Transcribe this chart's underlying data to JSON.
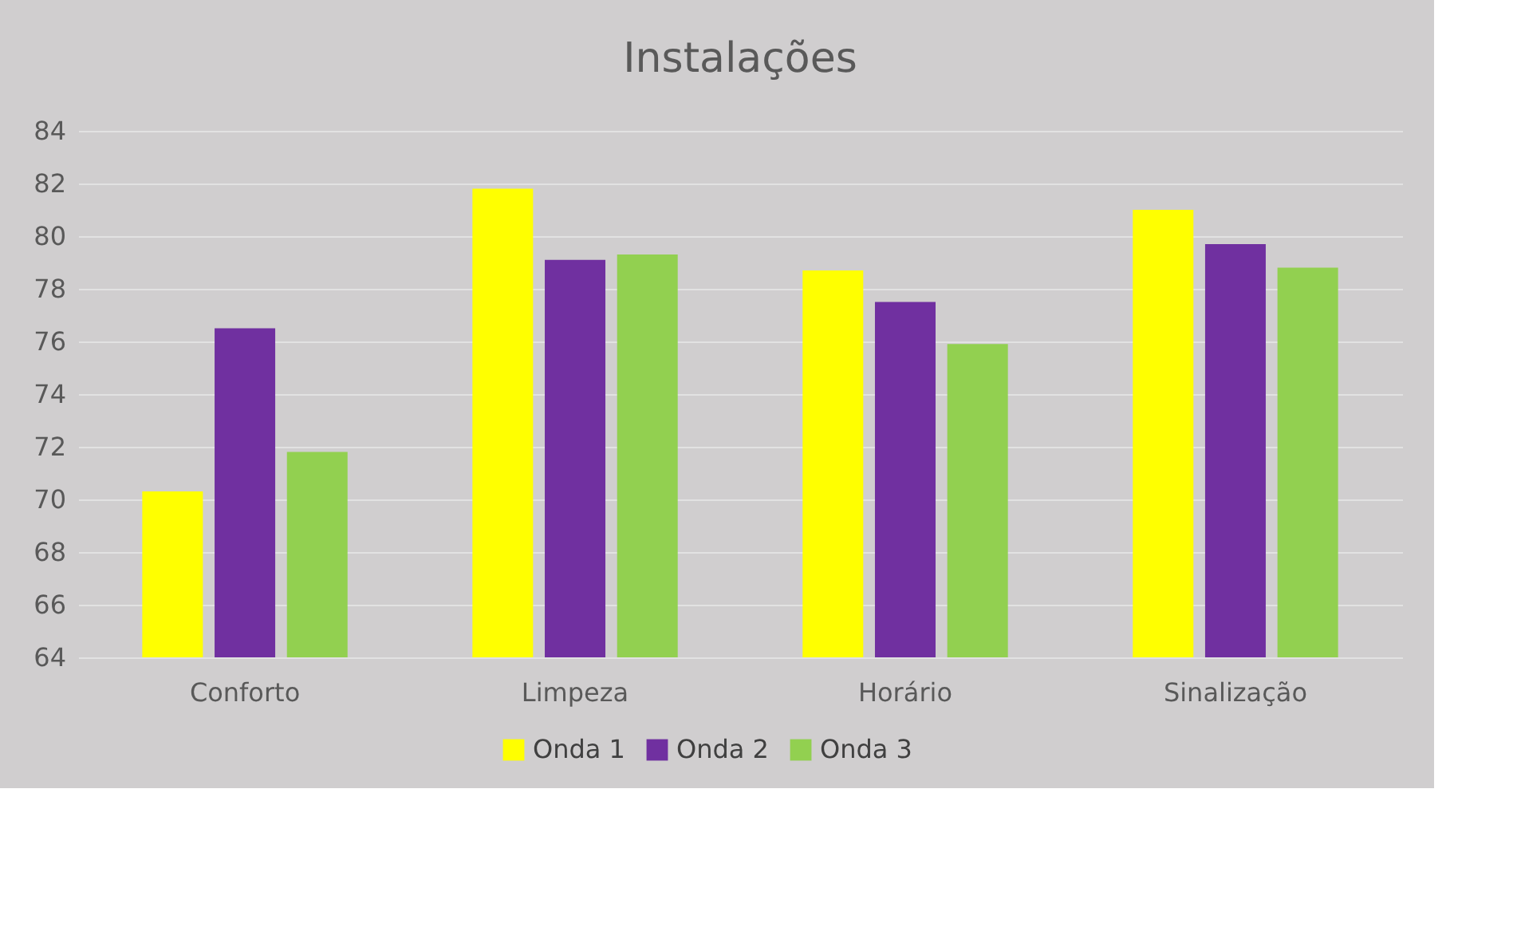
{
  "chart_data": {
    "type": "bar",
    "title": "Instalações",
    "categories": [
      "Conforto",
      "Limpeza",
      "Horário",
      "Sinalização"
    ],
    "series": [
      {
        "name": "Onda 1",
        "color": "#ffff00",
        "values": [
          70.3,
          81.8,
          78.7,
          81.0
        ]
      },
      {
        "name": "Onda 2",
        "color": "#7030a0",
        "values": [
          76.5,
          79.1,
          77.5,
          79.7
        ]
      },
      {
        "name": "Onda 3",
        "color": "#92d050",
        "values": [
          71.8,
          79.3,
          75.9,
          78.8
        ]
      }
    ],
    "ylim": [
      64,
      84
    ],
    "yticks": [
      64,
      66,
      68,
      70,
      72,
      74,
      76,
      78,
      80,
      82,
      84
    ],
    "grid": "y",
    "legend": "bottom"
  }
}
